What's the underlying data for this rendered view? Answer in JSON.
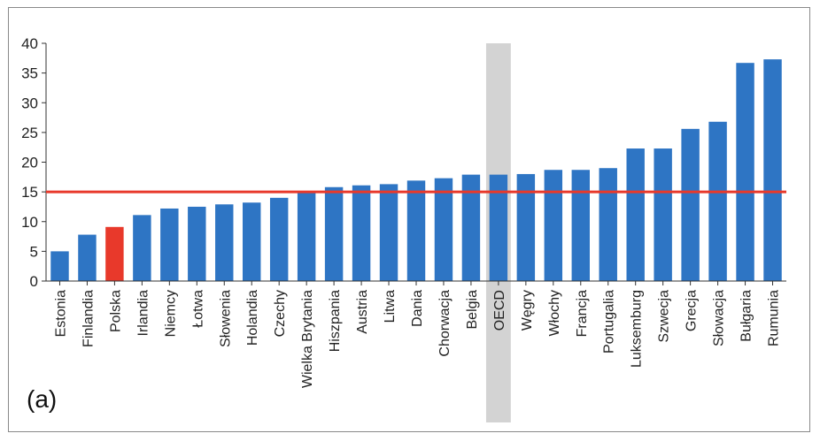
{
  "chart_data": {
    "type": "bar",
    "title": "",
    "xlabel": "",
    "ylabel": "",
    "ylim": [
      0,
      40
    ],
    "yticks": [
      0,
      5,
      10,
      15,
      20,
      25,
      30,
      35,
      40
    ],
    "grid": false,
    "categories": [
      "Estonia",
      "Finlandia",
      "Polska",
      "Irlandia",
      "Niemcy",
      "Łotwa",
      "Słowenia",
      "Holandia",
      "Czechy",
      "Wielka Brytania",
      "Hiszpania",
      "Austria",
      "Litwa",
      "Dania",
      "Chorwacja",
      "Belgia",
      "OECD",
      "Węgry",
      "Włochy",
      "Francja",
      "Portugalia",
      "Luksemburg",
      "Szwecja",
      "Grecja",
      "Słowacja",
      "Bułgaria",
      "Rumunia"
    ],
    "values": [
      5.0,
      7.8,
      9.1,
      11.1,
      12.2,
      12.5,
      12.9,
      13.2,
      14.0,
      15.0,
      15.8,
      16.1,
      16.3,
      16.9,
      17.3,
      17.9,
      17.9,
      18.0,
      18.7,
      18.7,
      19.0,
      22.3,
      22.3,
      25.6,
      26.8,
      36.7,
      37.3
    ],
    "highlight": {
      "category": "Polska",
      "color": "#e8392b"
    },
    "shaded_category": {
      "category": "OECD",
      "color": "#d3d3d3"
    },
    "reference_line": {
      "value": 15,
      "color": "#e8392b"
    },
    "bar_color": "#2e75c4",
    "panel_label": "(a)"
  }
}
